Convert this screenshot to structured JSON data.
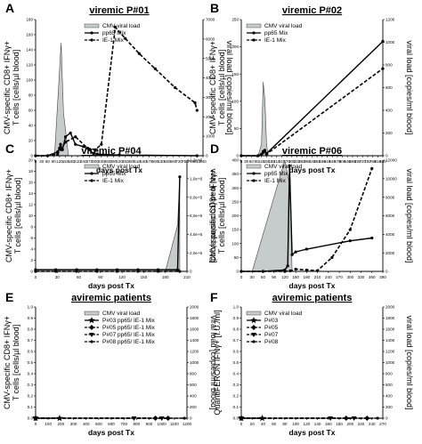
{
  "figure": {
    "panels": [
      {
        "letter": "A",
        "title": "viremic P#01",
        "ylabel": "CMV-specific CD8+ IFNγ+ T cells [cells/µl blood]",
        "y2label": "viral load [copies/ml blood]",
        "xlabel": "days post Tx"
      },
      {
        "letter": "B",
        "title": "viremic P#02",
        "ylabel": "CMV-specific CD8+ IFNγ+ T cells [cells/µl blood]",
        "y2label": "viral load [copies/ml blood]",
        "xlabel": "days post Tx"
      },
      {
        "letter": "C",
        "title": "viremic P#04",
        "ylabel": "CMV-specific CD8+ IFNγ+ T cells [cells/µl blood]",
        "y2label": "viral load [copies/ml blood]",
        "xlabel": "days post Tx"
      },
      {
        "letter": "D",
        "title": "viremic P#06",
        "ylabel": "CMV-specific CD8+ IFNγ+ T cells [cells/µl blood]",
        "y2label": "viral load [copies/ml blood]",
        "xlabel": "days post Tx"
      },
      {
        "letter": "E",
        "title": "aviremic patients",
        "ylabel": "CMV-specific CD8+ IFNγ+ T cells [cells/µl blood]",
        "y2label": "viral load [copies/ml blood]",
        "xlabel": "days post Tx"
      },
      {
        "letter": "F",
        "title": "aviremic patients",
        "ylabel": "QuantiFERON IFNγ+ [I.U./ml]",
        "y2label": "viral load [copies/ml blood]",
        "xlabel": "days post Tx"
      }
    ]
  },
  "chart_data": [
    {
      "type": "line",
      "title": "viremic P#01",
      "xlabel": "days post Tx",
      "ylabel": "CMV-specific CD8+ IFNγ+ T cells [cells/µl blood]",
      "y2label": "viral load [copies/ml blood]",
      "xlim": [
        0,
        840
      ],
      "ylim": [
        0,
        180
      ],
      "y2lim": [
        0,
        7000
      ],
      "xticks": [
        "0",
        "30",
        "60",
        "90",
        "120",
        "150",
        "180",
        "210",
        "240",
        "270",
        "300",
        "330",
        "360",
        "390",
        "420",
        "450",
        "480",
        "510",
        "540",
        "570",
        "600",
        "630",
        "660",
        "690",
        "720",
        "750",
        "780",
        "810",
        "840"
      ],
      "yticks": [
        "0",
        "20",
        "40",
        "60",
        "80",
        "100",
        "120",
        "140",
        "160",
        "180"
      ],
      "y2ticks": [
        "0",
        "1000",
        "2000",
        "3000",
        "4000",
        "5000",
        "6000",
        "7000"
      ],
      "legend": [
        "CMV viral load",
        "pp65 Mix",
        "IE-1 Mix"
      ],
      "series": [
        {
          "name": "CMV viral load",
          "kind": "area",
          "axis": "y2",
          "x": [
            60,
            95,
            115,
            128,
            140,
            165,
            200,
            240,
            280,
            320,
            800
          ],
          "y": [
            0,
            0,
            3500,
            5800,
            2200,
            0,
            0,
            0,
            0,
            0,
            0
          ]
        },
        {
          "name": "pp65 Mix",
          "kind": "line-solid",
          "axis": "y",
          "x": [
            0,
            60,
            110,
            120,
            125,
            135,
            150,
            175,
            200,
            240,
            270,
            290,
            310,
            420,
            810
          ],
          "y": [
            0,
            0,
            5,
            10,
            15,
            8,
            25,
            30,
            15,
            12,
            8,
            3,
            2,
            1,
            0
          ]
        },
        {
          "name": "IE-1 Mix",
          "kind": "line-dashed",
          "axis": "y",
          "x": [
            0,
            60,
            110,
            125,
            150,
            200,
            260,
            300,
            330,
            400,
            450,
            520,
            600,
            700,
            800,
            810
          ],
          "y": [
            0,
            0,
            2,
            8,
            18,
            25,
            10,
            8,
            15,
            170,
            155,
            135,
            115,
            90,
            70,
            60
          ]
        }
      ]
    },
    {
      "type": "line",
      "title": "viremic P#02",
      "xlabel": "days post Tx",
      "ylabel": "CMV-specific CD8+ IFNγ+ T cells [cells/µl blood]",
      "y2label": "viral load [copies/ml blood]",
      "xlim": [
        0,
        840
      ],
      "ylim": [
        0,
        250
      ],
      "y2lim": [
        0,
        1200
      ],
      "xticks": [
        "0",
        "30",
        "60",
        "90",
        "120",
        "150",
        "180",
        "210",
        "240",
        "270",
        "300",
        "330",
        "360",
        "390",
        "420",
        "450",
        "480",
        "510",
        "540",
        "570",
        "600",
        "630",
        "660",
        "690",
        "720",
        "750",
        "780",
        "810",
        "840"
      ],
      "yticks": [
        "0",
        "50",
        "100",
        "150",
        "200",
        "250"
      ],
      "y2ticks": [
        "0",
        "200",
        "400",
        "600",
        "800",
        "1000",
        "1200"
      ],
      "legend": [
        "CMV viral load",
        "pp65 Mix",
        "IE-1 Mix"
      ],
      "series": [
        {
          "name": "CMV viral load",
          "kind": "area",
          "axis": "y2",
          "x": [
            100,
            120,
            130,
            140,
            150,
            160
          ],
          "y": [
            0,
            100,
            650,
            500,
            100,
            0
          ]
        },
        {
          "name": "pp65 Mix",
          "kind": "line-solid",
          "axis": "y",
          "x": [
            0,
            100,
            120,
            130,
            140,
            150,
            840
          ],
          "y": [
            0,
            0,
            3,
            8,
            10,
            4,
            210
          ]
        },
        {
          "name": "IE-1 Mix",
          "kind": "line-dashed",
          "axis": "y",
          "x": [
            0,
            100,
            120,
            130,
            140,
            150,
            840
          ],
          "y": [
            0,
            0,
            2,
            6,
            8,
            3,
            160
          ]
        }
      ]
    },
    {
      "type": "line",
      "title": "viremic P#04",
      "xlabel": "days post Tx",
      "ylabel": "CMV-specific CD8+ IFNγ+ T cells [cells/µl blood]",
      "y2label": "viral load [copies/ml blood]",
      "xlim": [
        0,
        210
      ],
      "ylim": [
        0,
        20
      ],
      "y2lim": [
        0,
        1200000
      ],
      "xticks": [
        "0",
        "30",
        "60",
        "90",
        "120",
        "150",
        "180",
        "210"
      ],
      "yticks": [
        "0",
        "2",
        "4",
        "6",
        "8",
        "10",
        "12",
        "14",
        "16",
        "18",
        "20"
      ],
      "y2ticks": [
        "0",
        "2,0e+5",
        "4,0e+5",
        "6,0e+5",
        "8,0e+5",
        "1,0e+6",
        "1,2e+6"
      ],
      "legend": [
        "CMV viral load",
        "pp65 Mix",
        "IE-1 Mix"
      ],
      "series": [
        {
          "name": "CMV viral load",
          "kind": "area",
          "axis": "y2",
          "x": [
            180,
            197,
            200
          ],
          "y": [
            0,
            500000,
            1020000
          ]
        },
        {
          "name": "pp65 Mix",
          "kind": "line-solid",
          "axis": "y",
          "x": [
            0,
            28,
            57,
            85,
            113,
            142,
            170,
            197,
            200
          ],
          "y": [
            0.3,
            0.3,
            0.3,
            0.3,
            0.3,
            0.3,
            0.3,
            0.3,
            17
          ]
        },
        {
          "name": "IE-1 Mix",
          "kind": "line-dashed",
          "axis": "y",
          "x": [
            0,
            28,
            57,
            85,
            113,
            142,
            170,
            200
          ],
          "y": [
            0,
            0,
            0,
            0,
            0,
            0,
            0,
            0
          ]
        }
      ]
    },
    {
      "type": "line",
      "title": "viremic P#06",
      "xlabel": "days post Tx",
      "ylabel": "CMV-specific CD8+ IFNγ+ T cells [cells/µl blood]",
      "y2label": "viral load [copies/ml blood]",
      "xlim": [
        0,
        390
      ],
      "ylim": [
        0,
        400
      ],
      "y2lim": [
        0,
        12000
      ],
      "xticks": [
        "0",
        "30",
        "60",
        "90",
        "120",
        "150",
        "180",
        "210",
        "240",
        "270",
        "300",
        "330",
        "360",
        "390"
      ],
      "yticks": [
        "0",
        "50",
        "100",
        "150",
        "200",
        "250",
        "300",
        "350",
        "400"
      ],
      "y2ticks": [
        "0",
        "2000",
        "4000",
        "6000",
        "8000",
        "10000",
        "12000"
      ],
      "legend": [
        "CMV viral load",
        "pp65 Mix",
        "IE-1 Mix"
      ],
      "series": [
        {
          "name": "CMV viral load",
          "kind": "area",
          "axis": "y2",
          "x": [
            30,
            120,
            135,
            140
          ],
          "y": [
            0,
            12000,
            9000,
            0
          ]
        },
        {
          "name": "pp65 Mix",
          "kind": "line-solid",
          "axis": "y",
          "x": [
            0,
            60,
            120,
            128,
            133,
            140,
            150,
            180,
            300,
            360
          ],
          "y": [
            0,
            0,
            5,
            20,
            380,
            60,
            70,
            80,
            110,
            120
          ]
        },
        {
          "name": "IE-1 Mix",
          "kind": "line-dashed",
          "axis": "y",
          "x": [
            0,
            60,
            120,
            135,
            150,
            180,
            210,
            250,
            300,
            360
          ],
          "y": [
            0,
            0,
            0,
            2,
            8,
            5,
            3,
            50,
            150,
            370
          ]
        }
      ]
    },
    {
      "type": "line",
      "title": "aviremic patients",
      "xlabel": "days post Tx",
      "ylabel": "CMV-specific CD8+ IFNγ+ T cells [cells/µl blood]",
      "y2label": "viral load [copies/ml blood]",
      "xlim": [
        0,
        1200
      ],
      "ylim": [
        0,
        1.0
      ],
      "y2lim": [
        0,
        2000
      ],
      "xticks": [
        "0",
        "100",
        "200",
        "300",
        "400",
        "500",
        "600",
        "700",
        "800",
        "900",
        "1000",
        "1100",
        "1200"
      ],
      "yticks": [
        "0.0",
        "0.1",
        "0.2",
        "0.3",
        "0.4",
        "0.5",
        "0.6",
        "0.7",
        "0.8",
        "0.9",
        "1.0"
      ],
      "y2ticks": [
        "0",
        "200",
        "400",
        "600",
        "800",
        "1000",
        "1200",
        "1400",
        "1600",
        "1800",
        "2000"
      ],
      "legend": [
        "CMV viral load",
        "P#03 pp65/ IE-1 Mix",
        "P#05 pp65/ IE-1 Mix",
        "P#07 pp65/ IE-1 Mix",
        "P#08 pp65/ IE-1 Mix"
      ],
      "series": [
        {
          "name": "P#03 pp65/ IE-1 Mix",
          "kind": "line-solid",
          "marker": "star",
          "axis": "y",
          "x": [
            0,
            190
          ],
          "y": [
            0,
            0
          ]
        },
        {
          "name": "P#05 pp65/ IE-1 Mix",
          "kind": "line-dashed",
          "marker": "diamond",
          "axis": "y",
          "x": [
            0,
            950,
            1050
          ],
          "y": [
            0,
            0,
            0
          ]
        },
        {
          "name": "P#07 pp65/ IE-1 Mix",
          "kind": "line-dashed",
          "marker": "triangle",
          "axis": "y",
          "x": [
            0,
            780,
            1000
          ],
          "y": [
            0,
            0,
            0
          ]
        },
        {
          "name": "P#08 pp65/ IE-1 Mix",
          "kind": "line-dashed",
          "marker": "circle",
          "axis": "y",
          "x": [
            0,
            1180
          ],
          "y": [
            0,
            0
          ]
        }
      ]
    },
    {
      "type": "line",
      "title": "aviremic patients",
      "xlabel": "days post Tx",
      "ylabel": "QuantiFERON IFNγ+ [I.U./ml]",
      "y2label": "viral load [copies/ml blood]",
      "xlim": [
        0,
        270
      ],
      "ylim": [
        0,
        1.0
      ],
      "y2lim": [
        0,
        2000
      ],
      "xticks": [
        "0",
        "20",
        "40",
        "60",
        "80",
        "100",
        "120",
        "140",
        "160",
        "180",
        "200",
        "220",
        "240",
        "270"
      ],
      "yticks": [
        "0.0",
        "0.1",
        "0.2",
        "0.3",
        "0.4",
        "0.5",
        "0.6",
        "0.7",
        "0.8",
        "0.9",
        "1.0"
      ],
      "y2ticks": [
        "0",
        "200",
        "400",
        "600",
        "800",
        "1000",
        "1200",
        "1400",
        "1600",
        "1800",
        "2000"
      ],
      "legend": [
        "CMV viral load",
        "P#03",
        "P#05",
        "P#07",
        "P#08"
      ],
      "series": [
        {
          "name": "P#03",
          "kind": "line-solid",
          "marker": "star",
          "axis": "y",
          "x": [
            0,
            40
          ],
          "y": [
            0,
            0
          ]
        },
        {
          "name": "P#05",
          "kind": "line-dashed",
          "marker": "diamond",
          "axis": "y",
          "x": [
            0,
            200,
            240
          ],
          "y": [
            0,
            0,
            0
          ]
        },
        {
          "name": "P#07",
          "kind": "line-dashed",
          "marker": "triangle",
          "axis": "y",
          "x": [
            0,
            170,
            215
          ],
          "y": [
            0,
            0,
            0
          ]
        },
        {
          "name": "P#08",
          "kind": "line-dashed",
          "marker": "circle",
          "axis": "y",
          "x": [
            0,
            260
          ],
          "y": [
            0,
            0
          ]
        }
      ]
    }
  ]
}
